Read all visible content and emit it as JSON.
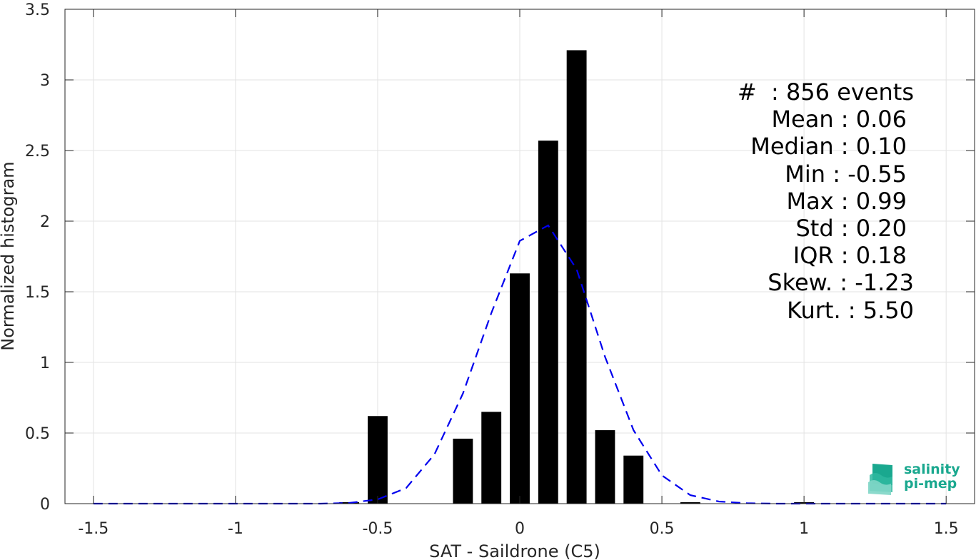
{
  "chart_data": {
    "type": "bar",
    "xlabel": "SAT - Saildrone (C5)",
    "ylabel": "Normalized histogram",
    "xlim": [
      -1.6,
      1.6
    ],
    "ylim": [
      0,
      3.5
    ],
    "grid": true,
    "x_ticks": [
      -1.5,
      -1,
      -0.5,
      0,
      0.5,
      1,
      1.5
    ],
    "x_tick_labels": [
      "-1.5",
      "-1",
      "-0.5",
      "0",
      "0.5",
      "1",
      "1.5"
    ],
    "y_ticks": [
      0,
      0.5,
      1,
      1.5,
      2,
      2.5,
      3,
      3.5
    ],
    "y_tick_labels": [
      "0",
      "0.5",
      "1",
      "1.5",
      "2",
      "2.5",
      "3",
      "3.5"
    ],
    "bars": {
      "color": "#000000",
      "x": [
        -0.6,
        -0.5,
        -0.2,
        -0.1,
        0.0,
        0.1,
        0.2,
        0.3,
        0.4,
        0.6,
        1.0
      ],
      "values": [
        0.01,
        0.62,
        0.46,
        0.65,
        1.63,
        2.57,
        3.21,
        0.52,
        0.34,
        0.01,
        0.01
      ]
    },
    "fit_curve": {
      "style": "dashed",
      "color": "#0000ee",
      "x": [
        -1.5,
        -1.4,
        -1.3,
        -1.2,
        -1.1,
        -1.0,
        -0.9,
        -0.8,
        -0.7,
        -0.6,
        -0.5,
        -0.4,
        -0.3,
        -0.2,
        -0.1,
        0.0,
        0.1,
        0.2,
        0.3,
        0.4,
        0.5,
        0.6,
        0.7,
        0.8,
        0.9,
        1.0,
        1.1,
        1.2,
        1.3,
        1.4,
        1.5
      ],
      "y": [
        0,
        0,
        0,
        0,
        0,
        0,
        0,
        0,
        0,
        0.005,
        0.03,
        0.11,
        0.35,
        0.78,
        1.35,
        1.86,
        1.97,
        1.66,
        1.04,
        0.52,
        0.2,
        0.06,
        0.015,
        0.003,
        0,
        0,
        0,
        0,
        0,
        0,
        0
      ]
    },
    "stats": [
      "#  : 856 events",
      "Mean : 0.06",
      "Median : 0.10",
      "Min : -0.55",
      "Max : 0.99",
      "Std : 0.20",
      "IQR : 0.18",
      "Skew. : -1.23",
      "Kurt. : 5.50"
    ]
  },
  "logo": {
    "line1": "salinity",
    "line2": "pi-mep",
    "color": "#1aa88f"
  }
}
